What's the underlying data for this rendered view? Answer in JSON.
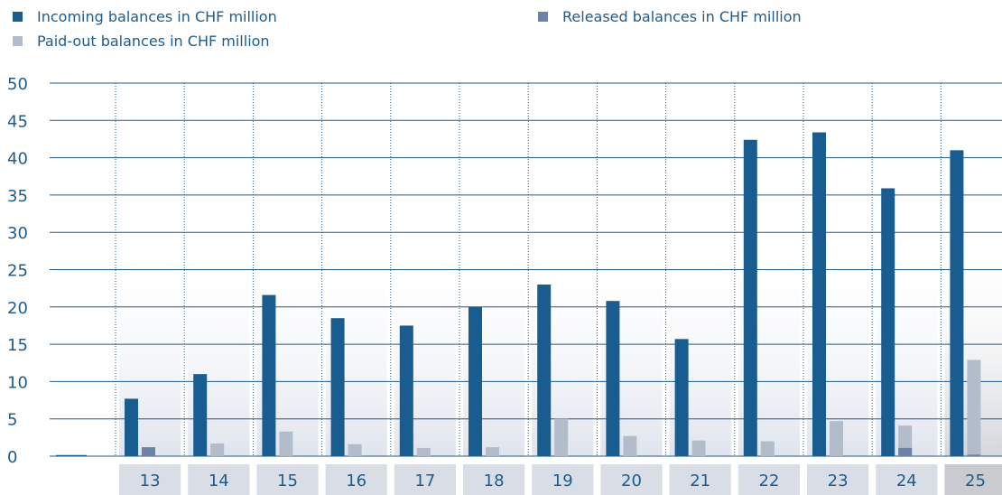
{
  "colors": {
    "incoming": "#195d90",
    "released": "#6b83a6",
    "paid_out": "#b3bccb",
    "grid": "#1d5c8d",
    "text": "#1d5c8d",
    "label_box": "#d8dde6",
    "label_box_last": "#c9cbcf"
  },
  "chart_data": {
    "type": "bar",
    "categories": [
      "13",
      "14",
      "15",
      "16",
      "17",
      "18",
      "19",
      "20",
      "21",
      "22",
      "23",
      "24",
      "25"
    ],
    "series": [
      {
        "name": "Incoming balances in CHF million",
        "values": [
          7.7,
          11.0,
          21.6,
          18.5,
          17.5,
          20.0,
          23.0,
          20.8,
          15.7,
          42.4,
          43.4,
          35.9,
          41.0
        ]
      },
      {
        "name": "Released balances in CHF million",
        "values": [
          1.2,
          0,
          0,
          0,
          0,
          0,
          0,
          0,
          0,
          0,
          0,
          1.1,
          0.2
        ]
      },
      {
        "name": "Paid-out balances in CHF million",
        "values": [
          0,
          1.7,
          3.3,
          1.6,
          1.1,
          1.2,
          5.0,
          2.7,
          2.1,
          2.0,
          4.7,
          4.1,
          12.9
        ]
      }
    ],
    "ylim": [
      0,
      50
    ],
    "yticks": [
      0,
      5,
      10,
      15,
      20,
      25,
      30,
      35,
      40,
      45,
      50
    ],
    "legend_position": "top",
    "grid": true
  }
}
